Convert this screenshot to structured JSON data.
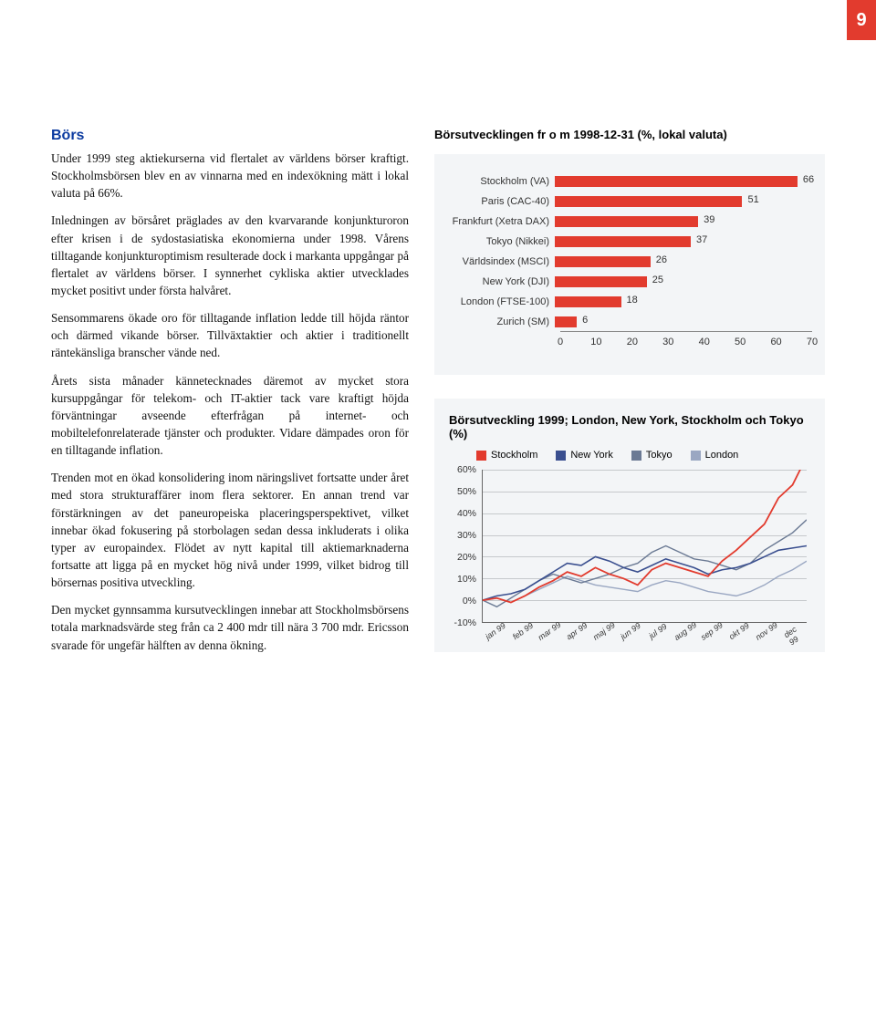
{
  "page_number": "9",
  "heading": "Börs",
  "paragraphs": [
    "Under 1999 steg aktiekurserna vid flertalet av världens börser kraftigt. Stockholmsbörsen blev en av vinnarna med en indexökning mätt i lokal valuta på 66%.",
    "Inledningen av börsåret präglades av den kvarvarande konjunkturoron efter krisen i de sydostasiatiska ekonomierna under 1998. Vårens tilltagande konjunkturoptimism resulterade dock i markanta uppgångar på flertalet av världens börser. I synnerhet cykliska aktier utvecklades mycket positivt under första halvåret.",
    "Sensommarens ökade oro för tilltagande inflation ledde till höjda räntor och därmed vikande börser. Tillväxtaktier och aktier i traditionellt räntekänsliga branscher vände ned.",
    "Årets sista månader kännetecknades däremot av mycket stora kursuppgångar för telekom- och IT-aktier tack vare kraftigt höjda förväntningar avseende efterfrågan på internet- och mobiltelefonrelaterade tjänster och produkter. Vidare dämpades oron för en tilltagande inflation.",
    "Trenden mot en ökad konsolidering inom näringslivet fortsatte under året med stora strukturaffärer inom flera sektorer. En annan trend var förstärkningen av det paneuropeiska placeringsperspektivet, vilket innebar ökad fokusering på storbolagen sedan dessa inkluderats i olika typer av europaindex. Flödet av nytt kapital till aktiemarknaderna fortsatte att ligga på en mycket hög nivå under 1999, vilket bidrog till börsernas positiva utveckling.",
    "Den mycket gynnsamma kursutvecklingen innebar att Stockholmsbörsens totala marknadsvärde steg från ca 2 400 mdr till nära 3 700 mdr. Ericsson svarade för ungefär hälften av denna ökning."
  ],
  "bar_chart": {
    "title": "Börsutvecklingen fr o m 1998-12-31 (%, lokal valuta)",
    "background": "#f3f5f7",
    "bar_color": "#e23b2e",
    "categories": [
      {
        "label": "Stockholm (VA)",
        "value": 66
      },
      {
        "label": "Paris (CAC-40)",
        "value": 51
      },
      {
        "label": "Frankfurt (Xetra DAX)",
        "value": 39
      },
      {
        "label": "Tokyo (Nikkei)",
        "value": 37
      },
      {
        "label": "Världsindex (MSCI)",
        "value": 26
      },
      {
        "label": "New York (DJI)",
        "value": 25
      },
      {
        "label": "London (FTSE-100)",
        "value": 18
      },
      {
        "label": "Zurich (SM)",
        "value": 6
      }
    ],
    "x_ticks": [
      0,
      10,
      20,
      30,
      40,
      50,
      60,
      70
    ],
    "x_max": 70
  },
  "line_chart": {
    "title": "Börsutveckling 1999; London, New York, Stockholm och Tokyo (%)",
    "background": "#f3f5f7",
    "legend": [
      {
        "name": "Stockholm",
        "color": "#e23b2e"
      },
      {
        "name": "New York",
        "color": "#3a4f8f"
      },
      {
        "name": "Tokyo",
        "color": "#6b7a94"
      },
      {
        "name": "London",
        "color": "#9aa7c2"
      }
    ],
    "y_ticks": [
      "60%",
      "50%",
      "40%",
      "30%",
      "20%",
      "10%",
      "0%",
      "-10%"
    ],
    "y_min": -10,
    "y_max": 60,
    "x_labels": [
      "jan 99",
      "feb 99",
      "mar 99",
      "apr 99",
      "maj 99",
      "jun 99",
      "jul 99",
      "aug 99",
      "sep 99",
      "okt 99",
      "nov 99",
      "dec 99"
    ],
    "series": {
      "stockholm": [
        0,
        1,
        -1,
        2,
        6,
        9,
        13,
        11,
        15,
        12,
        10,
        7,
        14,
        17,
        15,
        13,
        11,
        18,
        23,
        29,
        35,
        47,
        53,
        66
      ],
      "newyork": [
        0,
        2,
        3,
        5,
        9,
        13,
        17,
        16,
        20,
        18,
        15,
        13,
        16,
        19,
        17,
        15,
        12,
        14,
        15,
        17,
        20,
        23,
        24,
        25
      ],
      "tokyo": [
        0,
        -3,
        1,
        5,
        9,
        12,
        10,
        8,
        10,
        12,
        15,
        17,
        22,
        25,
        22,
        19,
        18,
        16,
        14,
        17,
        23,
        27,
        31,
        37
      ],
      "london": [
        0,
        1,
        -1,
        2,
        5,
        8,
        11,
        9,
        7,
        6,
        5,
        4,
        7,
        9,
        8,
        6,
        4,
        3,
        2,
        4,
        7,
        11,
        14,
        18
      ]
    },
    "grid_color": "#c6c9cc"
  }
}
